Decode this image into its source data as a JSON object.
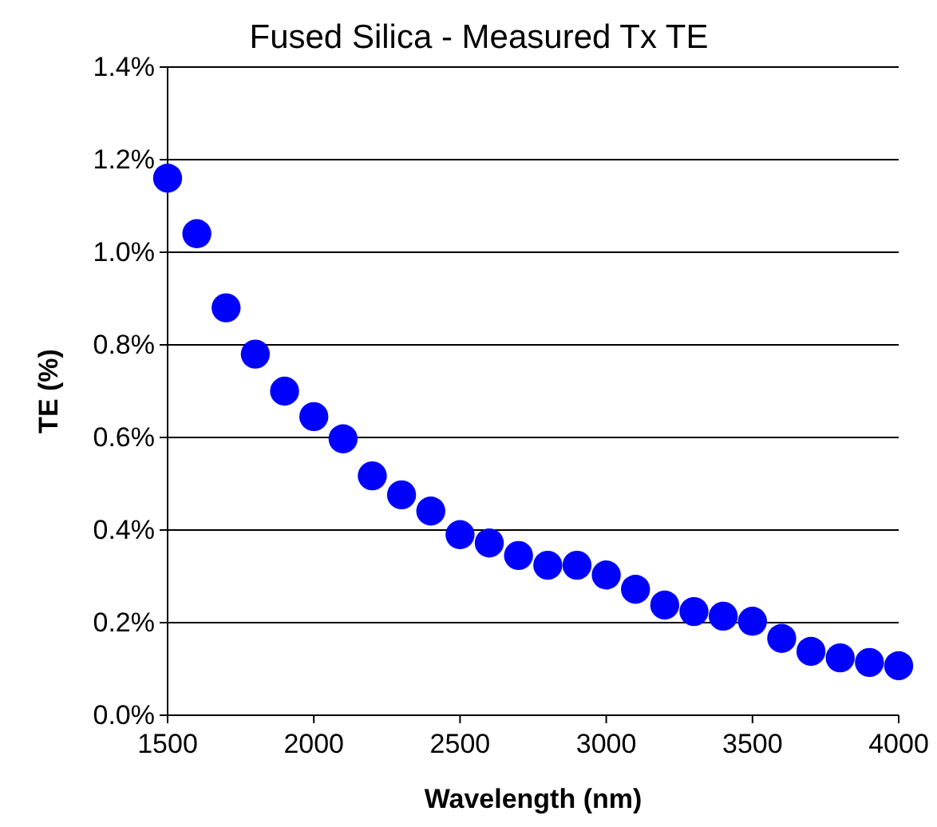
{
  "chart_data": {
    "type": "scatter",
    "title": "Fused Silica - Measured Tx TE",
    "xlabel": "Wavelength (nm)",
    "ylabel": "TE (%)",
    "x": [
      1500,
      1600,
      1700,
      1800,
      1900,
      2000,
      2100,
      2200,
      2300,
      2400,
      2500,
      2600,
      2700,
      2800,
      2900,
      3000,
      3100,
      3200,
      3300,
      3400,
      3500,
      3600,
      3700,
      3800,
      3900,
      4000
    ],
    "series": [
      {
        "color": "#0000ff",
        "values": [
          1.16,
          1.04,
          0.88,
          0.78,
          0.7,
          0.645,
          0.597,
          0.517,
          0.476,
          0.441,
          0.39,
          0.372,
          0.345,
          0.324,
          0.324,
          0.303,
          0.272,
          0.238,
          0.224,
          0.214,
          0.203,
          0.166,
          0.138,
          0.124,
          0.114,
          0.107
        ]
      }
    ],
    "xlim": [
      1500,
      4000
    ],
    "xticks": [
      1500,
      2000,
      2500,
      3000,
      3500,
      4000
    ],
    "ylim": [
      0,
      1.4
    ],
    "yticks": [
      {
        "value": 0,
        "label": "0.0%"
      },
      {
        "value": 0.2,
        "label": "0.2%"
      },
      {
        "value": 0.4,
        "label": "0.4%"
      },
      {
        "value": 0.6,
        "label": "0.6%"
      },
      {
        "value": 0.8,
        "label": "0.8%"
      },
      {
        "value": 1.0,
        "label": "1.0%"
      },
      {
        "value": 1.2,
        "label": "1.2%"
      },
      {
        "value": 1.4,
        "label": "1.4%"
      }
    ],
    "grid": "y",
    "marker": "circle"
  }
}
